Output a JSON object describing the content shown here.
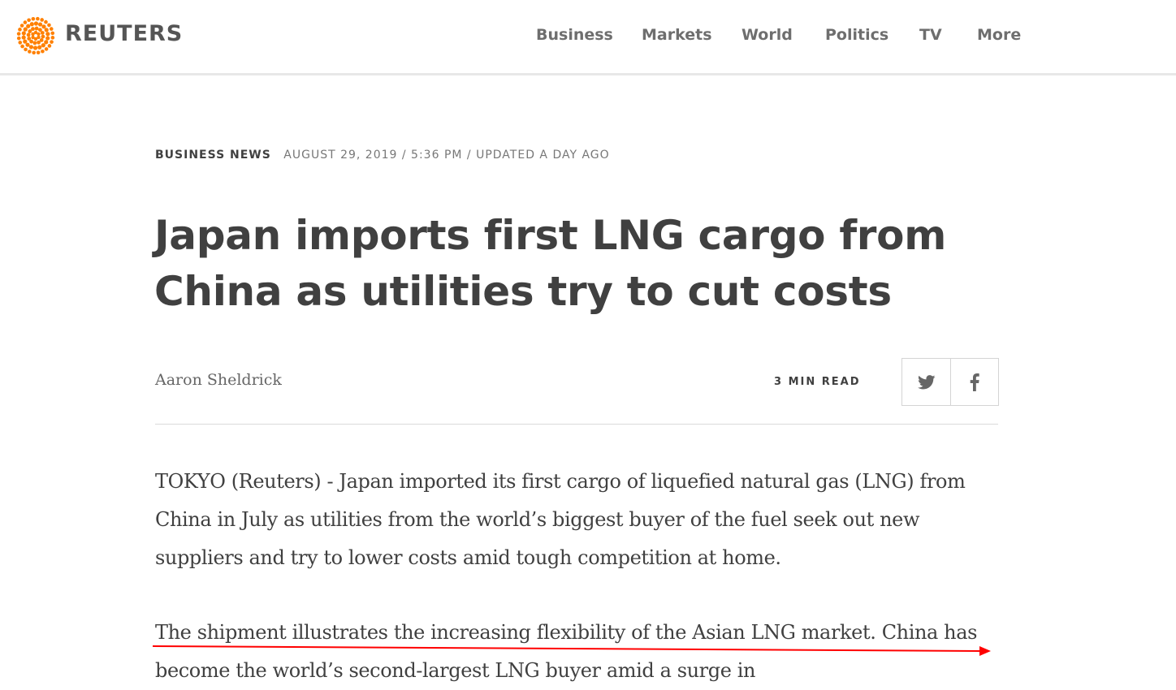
{
  "brand": {
    "name": "REUTERS",
    "logo_icon": "reuters-dot-circle-icon",
    "logo_color": "#ff8000"
  },
  "nav": {
    "items": [
      {
        "label": "Business"
      },
      {
        "label": "Markets"
      },
      {
        "label": "World"
      },
      {
        "label": "Politics"
      },
      {
        "label": "TV"
      },
      {
        "label": "More"
      }
    ]
  },
  "article": {
    "section": "BUSINESS NEWS",
    "timestamp": "AUGUST 29, 2019 / 5:36 PM / UPDATED A DAY AGO",
    "headline": "Japan imports first LNG cargo from China as utilities try to cut costs",
    "byline": "Aaron Sheldrick",
    "read_time": "3 MIN READ",
    "share": {
      "twitter_icon": "twitter-icon",
      "facebook_icon": "facebook-icon"
    },
    "paragraphs": [
      "TOKYO (Reuters) - Japan imported its first cargo of liquefied natural gas (LNG) from China in July as utilities from the world’s biggest buyer of the fuel seek out new suppliers and try to lower costs amid tough competition at home.",
      "The shipment illustrates the increasing flexibility of the Asian LNG market. China has become the world’s second-largest LNG buyer amid a surge in"
    ]
  },
  "colors": {
    "annotation": "#ff0000",
    "text": "#404040",
    "nav": "#6e6e6e"
  }
}
